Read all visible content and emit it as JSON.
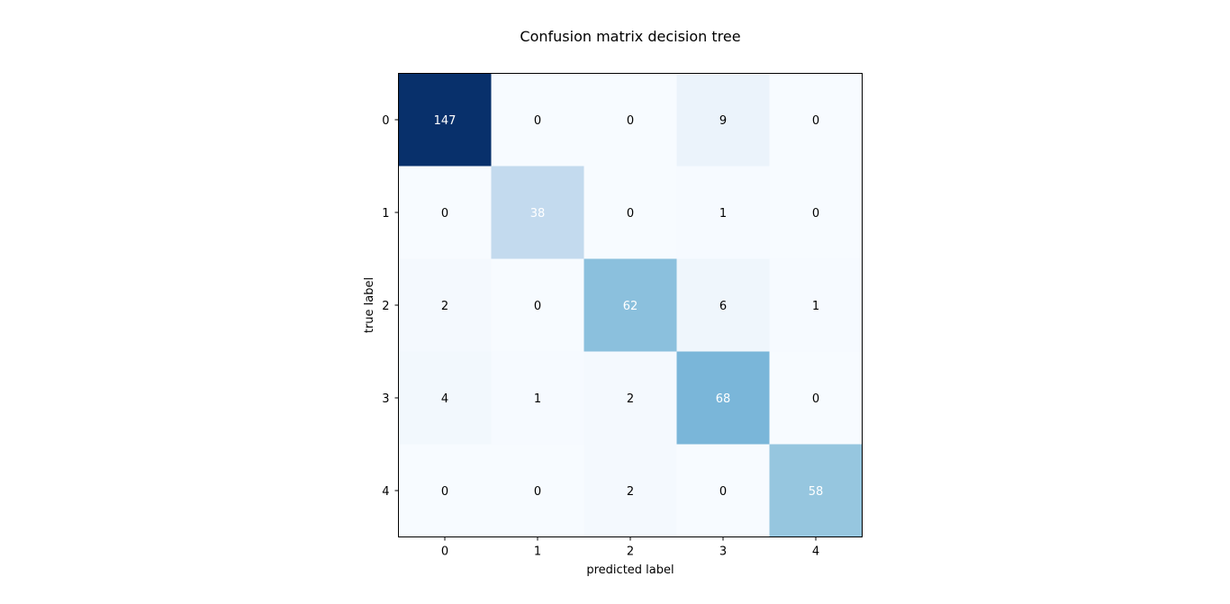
{
  "chart_data": {
    "type": "heatmap",
    "title": "Confusion matrix decision tree",
    "xlabel": "predicted label",
    "ylabel": "true label",
    "x_ticks": [
      "0",
      "1",
      "2",
      "3",
      "4"
    ],
    "y_ticks": [
      "0",
      "1",
      "2",
      "3",
      "4"
    ],
    "matrix": [
      [
        147,
        0,
        0,
        9,
        0
      ],
      [
        0,
        38,
        0,
        1,
        0
      ],
      [
        2,
        0,
        62,
        6,
        1
      ],
      [
        4,
        1,
        2,
        68,
        0
      ],
      [
        0,
        0,
        2,
        0,
        58
      ]
    ],
    "colormap": "Blues",
    "vmin": 0,
    "vmax": 147,
    "grid": false
  }
}
